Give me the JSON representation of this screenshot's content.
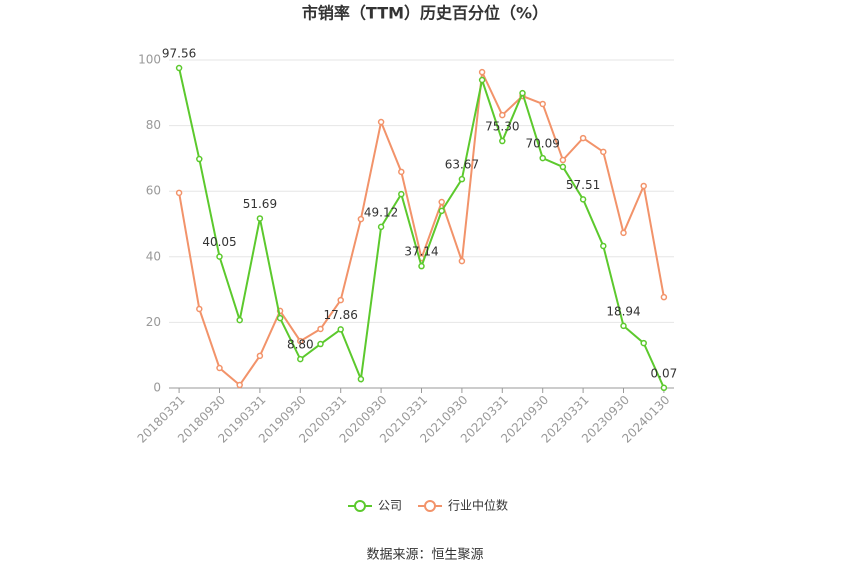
{
  "chart_data": {
    "type": "line",
    "title": "市销率（TTM）历史百分位（%）",
    "source": "数据来源：恒生聚源",
    "categories": [
      "20180331",
      null,
      "20180930",
      null,
      "20190331",
      null,
      "20190930",
      null,
      "20200331",
      null,
      "20200930",
      null,
      "20210331",
      null,
      "20210930",
      null,
      "20220331",
      null,
      "20220930",
      null,
      "20230331",
      null,
      "20230930",
      null,
      "20240130"
    ],
    "series": [
      {
        "name": "公司",
        "color": "#5cc92d",
        "values": [
          97.56,
          69.8,
          40.05,
          20.7,
          51.69,
          21.3,
          8.8,
          13.4,
          17.86,
          2.7,
          49.12,
          59.1,
          37.14,
          54.0,
          63.67,
          93.9,
          75.3,
          89.9,
          70.09,
          67.4,
          57.51,
          43.3,
          18.94,
          13.7,
          0.07
        ],
        "value_labels": [
          "97.56",
          null,
          "40.05",
          null,
          "51.69",
          null,
          "8.80",
          null,
          "17.86",
          null,
          "49.12",
          null,
          "37.14",
          null,
          "63.67",
          null,
          "75.30",
          null,
          "70.09",
          null,
          "57.51",
          null,
          "18.94",
          null,
          "0.07"
        ]
      },
      {
        "name": "行业中位数",
        "color": "#f2936a",
        "values": [
          59.5,
          24.1,
          6.1,
          0.9,
          9.8,
          23.5,
          14.3,
          18.0,
          26.8,
          51.5,
          81.1,
          65.9,
          39.6,
          56.7,
          38.7,
          96.3,
          83.2,
          89.0,
          86.6,
          69.5,
          76.2,
          72.0,
          47.3,
          61.6,
          27.7
        ]
      }
    ],
    "ylim": [
      0,
      100
    ],
    "yticks": [
      0,
      20,
      40,
      60,
      80,
      100
    ],
    "grid": true,
    "legend": "bottom"
  }
}
